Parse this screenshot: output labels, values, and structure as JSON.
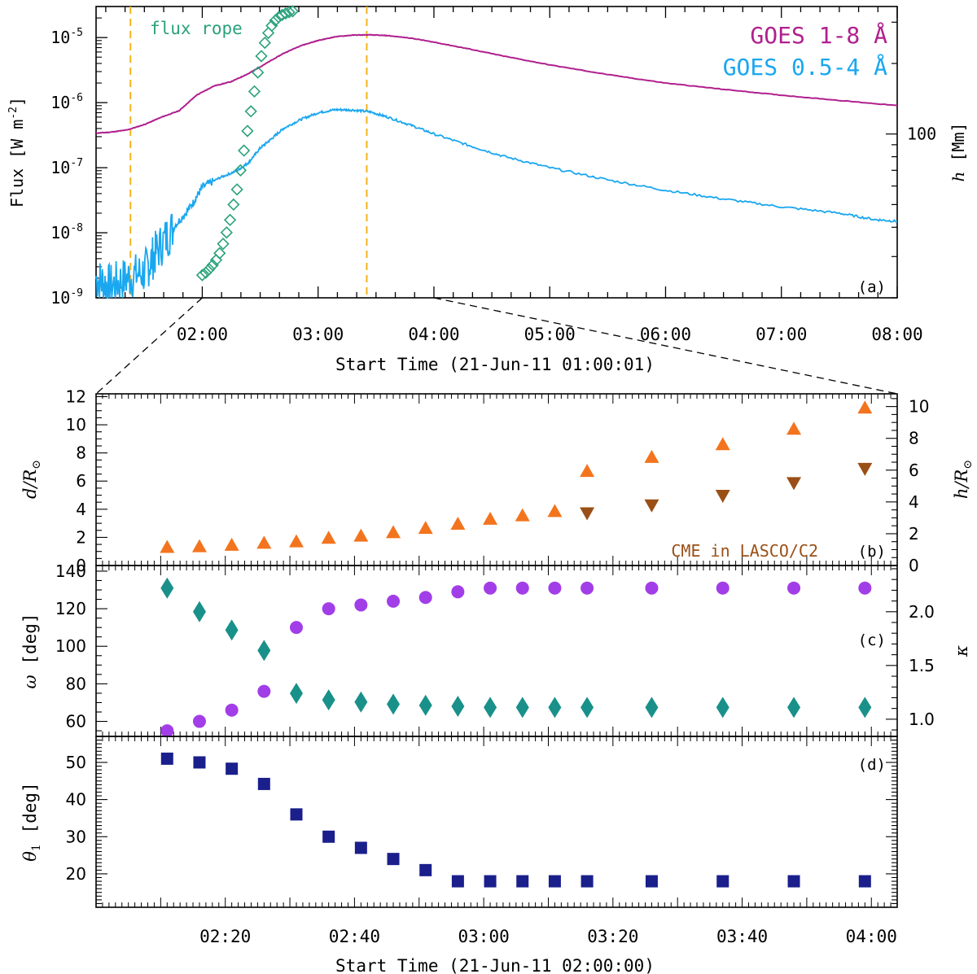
{
  "chart_data": [
    {
      "type": "line",
      "panel": "a",
      "panel_label": "(a)",
      "xlabel": "Start Time (21-Jun-11 01:00:01)",
      "x_unit": "hours UT",
      "xlim": [
        1.083,
        8.0
      ],
      "xticks": [
        "02:00",
        "03:00",
        "04:00",
        "05:00",
        "06:00",
        "07:00",
        "08:00"
      ],
      "ylabel": "Flux [W m",
      "ylabel_sup": "-2",
      "ylabel_end": "]",
      "y_scale": "log",
      "ylim": [
        1e-09,
        3e-05
      ],
      "yticks": [
        {
          "base": "10",
          "exp": "-9"
        },
        {
          "base": "10",
          "exp": "-8"
        },
        {
          "base": "10",
          "exp": "-7"
        },
        {
          "base": "10",
          "exp": "-6"
        },
        {
          "base": "10",
          "exp": "-5"
        }
      ],
      "y2label_sym": "h",
      "y2label_rest": " [Mm]",
      "y2_scale": "log",
      "y2lim": [
        20,
        350
      ],
      "y2ticks": [
        "100"
      ],
      "vlines": {
        "color": "#f5b41c",
        "x": [
          1.38,
          3.42
        ]
      },
      "series": [
        {
          "name": "GOES 1-8 Å",
          "color": "#b0208e",
          "x": [
            1.083,
            1.2,
            1.35,
            1.5,
            1.65,
            1.8,
            1.95,
            2.1,
            2.25,
            2.4,
            2.55,
            2.7,
            2.85,
            3.0,
            3.15,
            3.3,
            3.45,
            3.6,
            3.8,
            4.0,
            4.3,
            4.6,
            5.0,
            5.5,
            6.0,
            6.5,
            7.0,
            7.5,
            8.0
          ],
          "y": [
            3.4e-07,
            3.5e-07,
            3.8e-07,
            4.6e-07,
            6e-07,
            7.5e-07,
            1.3e-06,
            1.8e-06,
            2.1e-06,
            2.8e-06,
            4e-06,
            5.7e-06,
            7.5e-06,
            9e-06,
            1.03e-05,
            1.09e-05,
            1.1e-05,
            1.07e-05,
            9.8e-06,
            8.5e-06,
            6.7e-06,
            5.2e-06,
            3.8e-06,
            2.7e-06,
            2e-06,
            1.6e-06,
            1.3e-06,
            1.08e-06,
            9e-07
          ]
        },
        {
          "name": "GOES 0.5-4 Å",
          "color": "#1aa7ef",
          "x": [
            1.083,
            1.2,
            1.35,
            1.5,
            1.6,
            1.75,
            1.9,
            2.0,
            2.15,
            2.3,
            2.4,
            2.5,
            2.6,
            2.7,
            2.85,
            3.0,
            3.15,
            3.3,
            3.45,
            3.6,
            3.8,
            4.0,
            4.3,
            4.6,
            5.0,
            5.5,
            6.0,
            6.5,
            7.0,
            7.5,
            7.8,
            8.0
          ],
          "y": [
            2e-09,
            1.5e-09,
            2e-09,
            2.5e-09,
            5e-09,
            1.2e-08,
            2.5e-08,
            5e-08,
            7e-08,
            9e-08,
            1.2e-07,
            2e-07,
            2.8e-07,
            4e-07,
            5.5e-07,
            7e-07,
            7.8e-07,
            7.7e-07,
            7.2e-07,
            6e-07,
            4.5e-07,
            3.3e-07,
            2.2e-07,
            1.5e-07,
            1e-07,
            6.5e-08,
            4.5e-08,
            3.3e-08,
            2.5e-08,
            2e-08,
            1.6e-08,
            1.5e-08
          ]
        },
        {
          "name": "flux rope",
          "color": "#2aa17b",
          "type": "scatter",
          "marker": "diamond-open",
          "axis": "right",
          "x": [
            2.0,
            2.03,
            2.06,
            2.09,
            2.12,
            2.15,
            2.18,
            2.21,
            2.24,
            2.27,
            2.3,
            2.33,
            2.36,
            2.39,
            2.42,
            2.45,
            2.48,
            2.51,
            2.54,
            2.57,
            2.6,
            2.63,
            2.66,
            2.69,
            2.72,
            2.75,
            2.78
          ],
          "y": [
            25,
            25.6,
            26.5,
            27.6,
            29,
            31,
            34,
            38,
            43,
            50,
            58,
            70,
            85,
            103,
            125,
            152,
            183,
            215,
            245,
            270,
            290,
            305,
            315,
            322,
            327,
            331,
            334
          ]
        }
      ],
      "legend": [
        {
          "label": "GOES 1-8 Å",
          "color": "#b0208e"
        },
        {
          "label": "GOES 0.5-4 Å",
          "color": "#1aa7ef"
        }
      ],
      "annotations": [
        {
          "text": "flux rope",
          "color": "#2aa17b"
        }
      ]
    },
    {
      "type": "scatter",
      "panel": "b",
      "panel_label": "(b)",
      "x_unit": "minutes after 02:00:00",
      "xlim": [
        0,
        124
      ],
      "ylabel_sym": "d",
      "ylabel_rest": "/R",
      "ylabel_sub": "⊙",
      "ylim": [
        0,
        12.2
      ],
      "yticks": [
        "0",
        "2",
        "4",
        "6",
        "8",
        "10",
        "12"
      ],
      "y2label_sym": "h",
      "y2label_rest": "/R",
      "y2label_sub": "⊙",
      "y2lim": [
        0,
        10.8
      ],
      "y2ticks": [
        "0",
        "2",
        "4",
        "6",
        "8",
        "10"
      ],
      "series": [
        {
          "name": "d",
          "marker": "triangle-up",
          "color": "#f3741e",
          "x": [
            11,
            16,
            21,
            26,
            31,
            36,
            41,
            46,
            51,
            56,
            61,
            66,
            71,
            76,
            86,
            97,
            108,
            119
          ],
          "y": [
            1.3,
            1.35,
            1.45,
            1.6,
            1.7,
            1.95,
            2.1,
            2.35,
            2.65,
            2.95,
            3.3,
            3.55,
            3.85,
            6.7,
            7.7,
            8.6,
            9.7,
            11.2
          ]
        },
        {
          "name": "CME in LASCO/C2",
          "marker": "triangle-down",
          "color": "#9a4f16",
          "axis": "right",
          "x": [
            76,
            86,
            97,
            108,
            119
          ],
          "y": [
            3.3,
            3.8,
            4.4,
            5.2,
            6.1
          ]
        }
      ],
      "annotations": [
        {
          "text": "CME in LASCO/C2",
          "color": "#9a4f16"
        }
      ]
    },
    {
      "type": "scatter",
      "panel": "c",
      "panel_label": "(c)",
      "x_unit": "minutes after 02:00:00",
      "xlim": [
        0,
        124
      ],
      "ylabel_sym": "ω",
      "ylabel_rest": " [deg]",
      "ylim": [
        52,
        143
      ],
      "yticks": [
        "60",
        "80",
        "100",
        "120",
        "140"
      ],
      "y2label_sym": "κ",
      "y2lim": [
        0.84,
        2.43
      ],
      "y2ticks": [
        "1.0",
        "1.5",
        "2.0"
      ],
      "series": [
        {
          "name": "ω",
          "marker": "circle",
          "color": "#a23ee8",
          "x": [
            11,
            16,
            21,
            26,
            31,
            36,
            41,
            46,
            51,
            56,
            61,
            66,
            71,
            76,
            86,
            97,
            108,
            119
          ],
          "y": [
            55,
            60,
            66,
            76,
            110,
            120,
            122,
            124,
            126,
            129,
            131,
            131,
            131,
            131,
            131,
            131,
            131,
            131
          ]
        },
        {
          "name": "κ",
          "marker": "diamond",
          "color": "#19918a",
          "axis": "right",
          "x": [
            11,
            16,
            21,
            26,
            31,
            36,
            41,
            46,
            51,
            56,
            61,
            66,
            71,
            76,
            86,
            97,
            108,
            119
          ],
          "y": [
            2.22,
            2.0,
            1.83,
            1.64,
            1.24,
            1.18,
            1.16,
            1.14,
            1.13,
            1.12,
            1.11,
            1.11,
            1.11,
            1.11,
            1.11,
            1.11,
            1.11,
            1.11
          ]
        }
      ]
    },
    {
      "type": "scatter",
      "panel": "d",
      "panel_label": "(d)",
      "x_unit": "minutes after 02:00:00",
      "xlabel": "Start Time (21-Jun-11 02:00:00)",
      "xlim": [
        0,
        124
      ],
      "xticks": [
        {
          "value": 20,
          "label": "02:20"
        },
        {
          "value": 40,
          "label": "02:40"
        },
        {
          "value": 60,
          "label": "03:00"
        },
        {
          "value": 80,
          "label": "03:20"
        },
        {
          "value": 100,
          "label": "03:40"
        },
        {
          "value": 120,
          "label": "04:00"
        }
      ],
      "ylabel_sym": "θ",
      "ylabel_sub": "1",
      "ylabel_rest": " [deg]",
      "ylim": [
        11,
        57
      ],
      "yticks": [
        "20",
        "30",
        "40",
        "50"
      ],
      "series": [
        {
          "name": "θ1",
          "marker": "square",
          "color": "#1a1f8c",
          "x": [
            11,
            16,
            21,
            26,
            31,
            36,
            41,
            46,
            51,
            56,
            61,
            66,
            71,
            76,
            86,
            97,
            108,
            119
          ],
          "y": [
            51,
            50,
            48.3,
            44.2,
            36,
            30,
            27,
            24,
            21,
            18,
            18,
            18,
            18,
            18,
            18,
            18,
            18,
            18
          ]
        }
      ]
    }
  ]
}
